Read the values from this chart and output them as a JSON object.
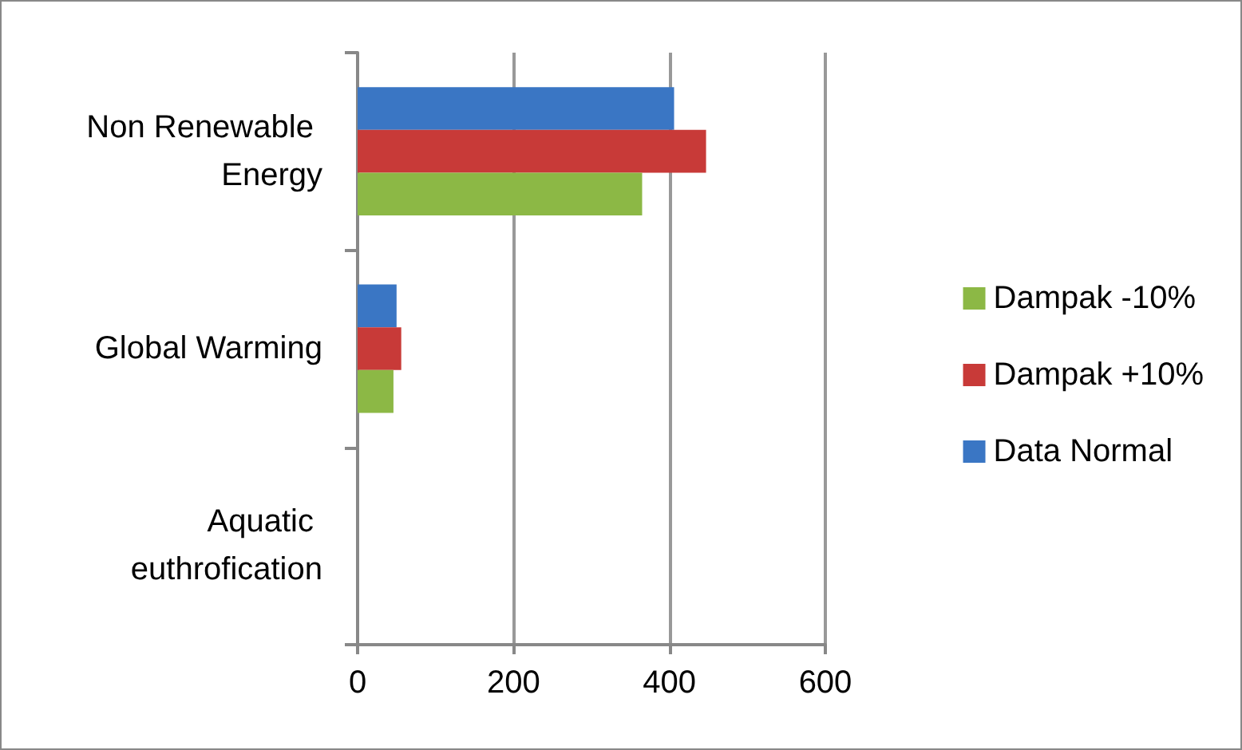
{
  "chart_data": {
    "type": "bar",
    "orientation": "horizontal",
    "categories": [
      "Non Renewable Energy",
      "Global Warming",
      "Aquatic euthrofication"
    ],
    "series": [
      {
        "name": "Data Normal",
        "color": "#3a76c4",
        "values": [
          406,
          50,
          0
        ]
      },
      {
        "name": "Dampak +10%",
        "color": "#c83a38",
        "values": [
          447,
          56,
          0
        ]
      },
      {
        "name": "Dampak -10%",
        "color": "#8cb845",
        "values": [
          365,
          46,
          0
        ]
      }
    ],
    "xlim": [
      0,
      600
    ],
    "xticks": [
      0,
      200,
      400,
      600
    ],
    "grid": "x",
    "legend": "right"
  }
}
